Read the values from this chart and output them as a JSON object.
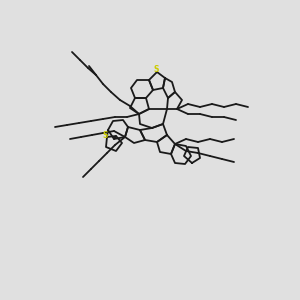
{
  "bg_color": "#e0e0e0",
  "line_color": "#1a1a1a",
  "sulfur_color": "#cccc00",
  "line_width": 1.3,
  "figsize": [
    3.0,
    3.0
  ],
  "dpi": 100
}
